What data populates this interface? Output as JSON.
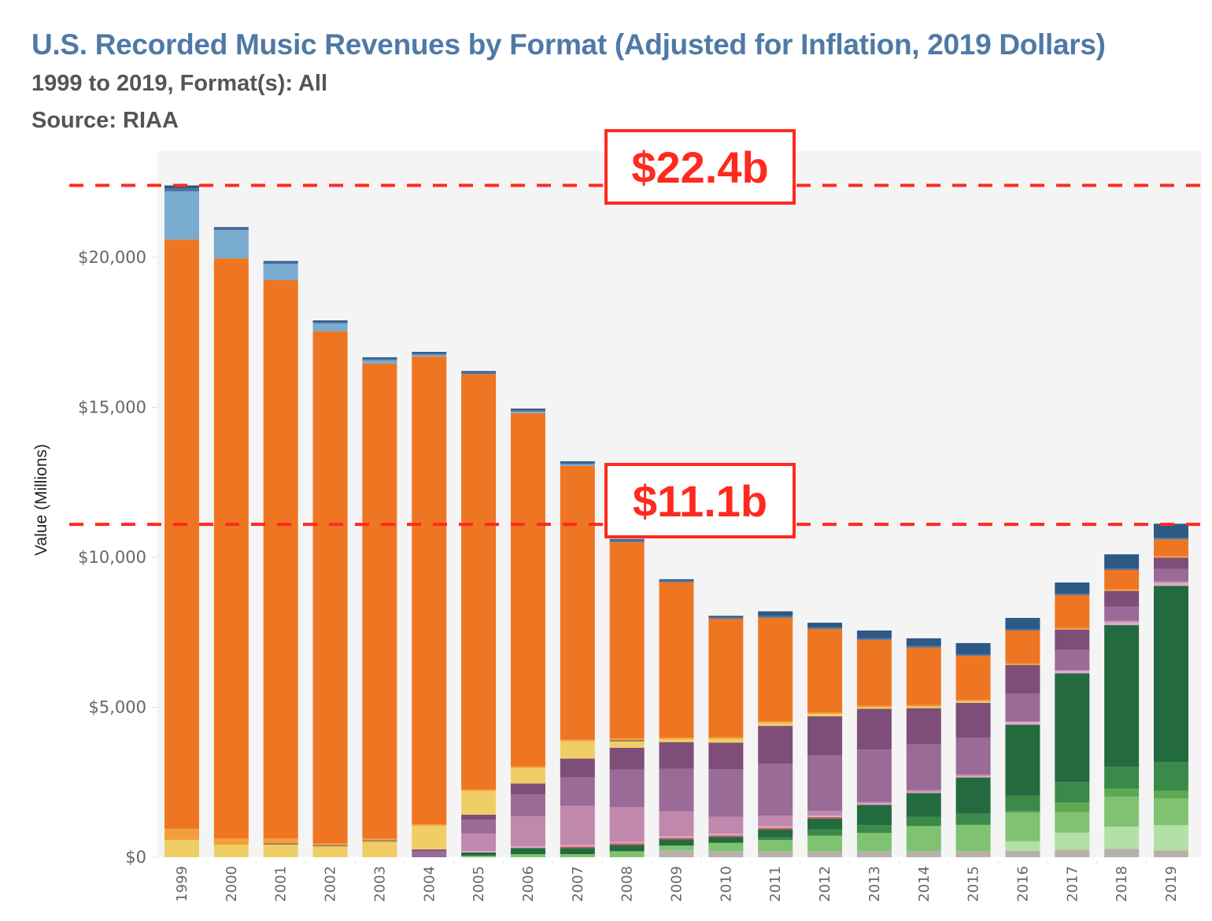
{
  "header": {
    "title": "U.S. Recorded Music Revenues by Format (Adjusted for Inflation, 2019 Dollars)",
    "subtitle": "1999 to 2019, Format(s): All",
    "source": "Source: RIAA"
  },
  "annotations": [
    {
      "label": "$22.4b",
      "value": 22400,
      "color": "#ff2a1f"
    },
    {
      "label": "$11.1b",
      "value": 11100,
      "color": "#ff2a1f"
    }
  ],
  "chart_data": {
    "type": "bar",
    "stacked": true,
    "title": "U.S. Recorded Music Revenues by Format (Adjusted for Inflation, 2019 Dollars)",
    "xlabel": "",
    "ylabel": "Value (Millions)",
    "ylim": [
      0,
      23000
    ],
    "yticks": [
      0,
      5000,
      10000,
      15000,
      20000
    ],
    "ytick_labels": [
      "$0",
      "$5,000",
      "$10,000",
      "$15,000",
      "$20,000"
    ],
    "grid": false,
    "legend": "none",
    "categories": [
      "1999",
      "2000",
      "2001",
      "2002",
      "2003",
      "2004",
      "2005",
      "2006",
      "2007",
      "2008",
      "2009",
      "2010",
      "2011",
      "2012",
      "2013",
      "2014",
      "2015",
      "2016",
      "2017",
      "2018",
      "2019"
    ],
    "series_note": "Segments stacked bottom-to-top in listed order; series names not labeled in image, identified by color only",
    "series": [
      {
        "name": "gray",
        "color": "#b8b0ab",
        "values": [
          0,
          0,
          0,
          0,
          0,
          0,
          0,
          0,
          0,
          0,
          230,
          200,
          200,
          200,
          200,
          200,
          200,
          210,
          250,
          280,
          230
        ]
      },
      {
        "name": "light-green",
        "color": "#b3e0a6",
        "values": [
          0,
          0,
          0,
          0,
          0,
          0,
          0,
          0,
          0,
          0,
          0,
          0,
          0,
          0,
          0,
          0,
          0,
          320,
          570,
          740,
          840
        ]
      },
      {
        "name": "green",
        "color": "#7fc370",
        "values": [
          0,
          0,
          0,
          0,
          0,
          0,
          50,
          100,
          100,
          200,
          160,
          280,
          370,
          520,
          610,
          840,
          880,
          950,
          690,
          1000,
          890
        ]
      },
      {
        "name": "mid-green-2",
        "color": "#5fa854",
        "values": [
          0,
          0,
          0,
          0,
          0,
          0,
          0,
          0,
          0,
          0,
          0,
          0,
          0,
          0,
          0,
          0,
          0,
          50,
          310,
          260,
          260
        ]
      },
      {
        "name": "mid-green",
        "color": "#3a8a4a",
        "values": [
          0,
          0,
          0,
          0,
          0,
          0,
          0,
          0,
          0,
          0,
          0,
          0,
          100,
          210,
          260,
          310,
          370,
          520,
          690,
          740,
          950
        ]
      },
      {
        "name": "dark-green",
        "color": "#236b3e",
        "values": [
          0,
          0,
          0,
          0,
          0,
          0,
          110,
          210,
          210,
          210,
          210,
          200,
          260,
          360,
          680,
          790,
          1210,
          2370,
          3620,
          4720,
          5880
        ]
      },
      {
        "name": "red",
        "color": "#d65a5a",
        "values": [
          0,
          0,
          0,
          0,
          0,
          0,
          0,
          0,
          50,
          50,
          50,
          50,
          50,
          50,
          0,
          0,
          0,
          0,
          0,
          0,
          0
        ]
      },
      {
        "name": "light-pink",
        "color": "#e0a8cc",
        "values": [
          0,
          0,
          0,
          0,
          0,
          0,
          50,
          50,
          50,
          50,
          50,
          50,
          50,
          50,
          50,
          50,
          50,
          100,
          100,
          100,
          100
        ]
      },
      {
        "name": "pink",
        "color": "#c088ad",
        "values": [
          0,
          0,
          0,
          0,
          0,
          0,
          580,
          1000,
          1310,
          1160,
          830,
          570,
          360,
          160,
          50,
          50,
          50,
          0,
          0,
          50,
          50
        ]
      },
      {
        "name": "purple",
        "color": "#9a6b96",
        "values": [
          0,
          0,
          0,
          0,
          0,
          210,
          470,
          730,
          940,
          1250,
          1420,
          1580,
          1730,
          1840,
          1740,
          1520,
          1230,
          940,
          680,
          470,
          420
        ]
      },
      {
        "name": "dark-purple",
        "color": "#7e4e78",
        "values": [
          0,
          0,
          0,
          0,
          0,
          50,
          160,
          370,
          630,
          730,
          890,
          890,
          1260,
          1310,
          1360,
          1210,
          1160,
          950,
          680,
          520,
          370
        ]
      },
      {
        "name": "yellow",
        "color": "#f0ce66",
        "values": [
          580,
          420,
          420,
          360,
          520,
          790,
          790,
          520,
          580,
          210,
          100,
          130,
          100,
          80,
          50,
          50,
          50,
          0,
          0,
          0,
          0
        ]
      },
      {
        "name": "brown",
        "color": "#9d7a5c",
        "values": [
          0,
          0,
          50,
          50,
          50,
          0,
          0,
          0,
          0,
          50,
          0,
          0,
          0,
          0,
          0,
          0,
          0,
          0,
          0,
          0,
          0
        ]
      },
      {
        "name": "light-orange",
        "color": "#f59e3c",
        "values": [
          370,
          210,
          160,
          50,
          50,
          50,
          50,
          50,
          50,
          50,
          50,
          50,
          50,
          50,
          50,
          50,
          50,
          50,
          50,
          50,
          50
        ]
      },
      {
        "name": "orange",
        "color": "#ee7623",
        "values": [
          19650,
          19340,
          18610,
          17080,
          15840,
          15600,
          13850,
          11780,
          9130,
          6550,
          5180,
          3950,
          3460,
          2780,
          2200,
          1920,
          1470,
          1100,
          1100,
          650,
          560
        ]
      },
      {
        "name": "light-blue",
        "color": "#79abd1",
        "values": [
          1600,
          940,
          540,
          260,
          110,
          50,
          0,
          50,
          50,
          0,
          0,
          0,
          0,
          0,
          0,
          0,
          0,
          0,
          0,
          0,
          0
        ]
      },
      {
        "name": "steel-blue",
        "color": "#4a74a0",
        "values": [
          100,
          50,
          50,
          50,
          50,
          50,
          50,
          50,
          50,
          50,
          50,
          50,
          50,
          50,
          50,
          50,
          50,
          50,
          50,
          50,
          50
        ]
      },
      {
        "name": "navy",
        "color": "#2d5986",
        "values": [
          100,
          50,
          50,
          50,
          50,
          50,
          50,
          50,
          50,
          50,
          50,
          50,
          160,
          160,
          260,
          260,
          370,
          370,
          370,
          470,
          470
        ]
      }
    ]
  }
}
